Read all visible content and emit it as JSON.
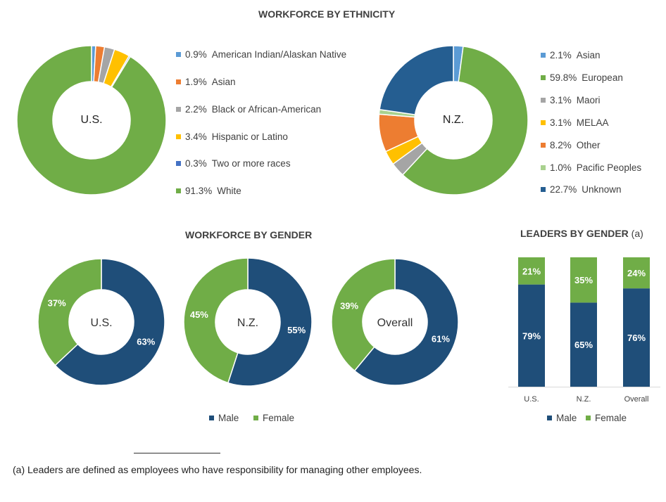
{
  "colors": {
    "green": "#70AD47",
    "navy": "#1F4E79",
    "blue_us": "#5B9BD5",
    "orange": "#ED7D31",
    "grey": "#A5A5A5",
    "yellow": "#FFC000",
    "darkblue": "#4472C4",
    "nz_blue": "#255E91",
    "light_green": "#A9D18E",
    "steelblue": "#2E75B6"
  },
  "chart_data": [
    {
      "id": "eth_us",
      "type": "donut",
      "title": "WORKFORCE BY ETHNICITY",
      "center_label": "U.S.",
      "series": [
        {
          "name": "American Indian/Alaskan Native",
          "pct_label": "0.9%",
          "value": 0.9,
          "color": "#5B9BD5"
        },
        {
          "name": "Asian",
          "pct_label": "1.9%",
          "value": 1.9,
          "color": "#ED7D31"
        },
        {
          "name": "Black or African-American",
          "pct_label": "2.2%",
          "value": 2.2,
          "color": "#A5A5A5"
        },
        {
          "name": "Hispanic or Latino",
          "pct_label": "3.4%",
          "value": 3.4,
          "color": "#FFC000"
        },
        {
          "name": "Two or more races",
          "pct_label": "0.3%",
          "value": 0.3,
          "color": "#4472C4"
        },
        {
          "name": "White",
          "pct_label": "91.3%",
          "value": 91.3,
          "color": "#70AD47"
        }
      ]
    },
    {
      "id": "eth_nz",
      "type": "donut",
      "center_label": "N.Z.",
      "series": [
        {
          "name": "Asian",
          "pct_label": "2.1%",
          "value": 2.1,
          "color": "#5B9BD5"
        },
        {
          "name": "European",
          "pct_label": "59.8%",
          "value": 59.8,
          "color": "#70AD47"
        },
        {
          "name": "Maori",
          "pct_label": "3.1%",
          "value": 3.1,
          "color": "#A5A5A5"
        },
        {
          "name": "MELAA",
          "pct_label": "3.1%",
          "value": 3.1,
          "color": "#FFC000"
        },
        {
          "name": "Other",
          "pct_label": "8.2%",
          "value": 8.2,
          "color": "#ED7D31"
        },
        {
          "name": "Pacific Peoples",
          "pct_label": "1.0%",
          "value": 1.0,
          "color": "#A9D18E"
        },
        {
          "name": "Unknown",
          "pct_label": "22.7%",
          "value": 22.7,
          "color": "#255E91"
        }
      ]
    },
    {
      "id": "gen_us",
      "type": "donut",
      "title": "WORKFORCE BY GENDER",
      "center_label": "U.S.",
      "series": [
        {
          "name": "Male",
          "value": 63,
          "label": "63%",
          "color": "#1F4E79"
        },
        {
          "name": "Female",
          "value": 37,
          "label": "37%",
          "color": "#70AD47"
        }
      ]
    },
    {
      "id": "gen_nz",
      "type": "donut",
      "center_label": "N.Z.",
      "series": [
        {
          "name": "Male",
          "value": 55,
          "label": "55%",
          "color": "#1F4E79"
        },
        {
          "name": "Female",
          "value": 45,
          "label": "45%",
          "color": "#70AD47"
        }
      ]
    },
    {
      "id": "gen_overall",
      "type": "donut",
      "center_label": "Overall",
      "series": [
        {
          "name": "Male",
          "value": 61,
          "label": "61%",
          "color": "#1F4E79"
        },
        {
          "name": "Female",
          "value": 39,
          "label": "39%",
          "color": "#70AD47"
        }
      ]
    },
    {
      "id": "leaders",
      "type": "bar",
      "stacked": true,
      "normalized": true,
      "title": "LEADERS BY GENDER",
      "title_suffix": "(a)",
      "categories": [
        "U.S.",
        "N.Z.",
        "Overall"
      ],
      "series": [
        {
          "name": "Male",
          "values": [
            79,
            65,
            76
          ],
          "labels": [
            "79%",
            "65%",
            "76%"
          ],
          "color": "#1F4E79"
        },
        {
          "name": "Female",
          "values": [
            21,
            35,
            24
          ],
          "labels": [
            "21%",
            "35%",
            "24%"
          ],
          "color": "#70AD47"
        }
      ],
      "ylim": [
        0,
        100
      ]
    }
  ],
  "gender_legend": [
    {
      "label": "Male",
      "color": "#1F4E79"
    },
    {
      "label": "Female",
      "color": "#70AD47"
    }
  ],
  "leaders_legend": [
    {
      "label": "Male",
      "color": "#1F4E79"
    },
    {
      "label": "Female",
      "color": "#70AD47"
    }
  ],
  "footnote": "(a) Leaders are defined as employees who have responsibility for managing other employees."
}
